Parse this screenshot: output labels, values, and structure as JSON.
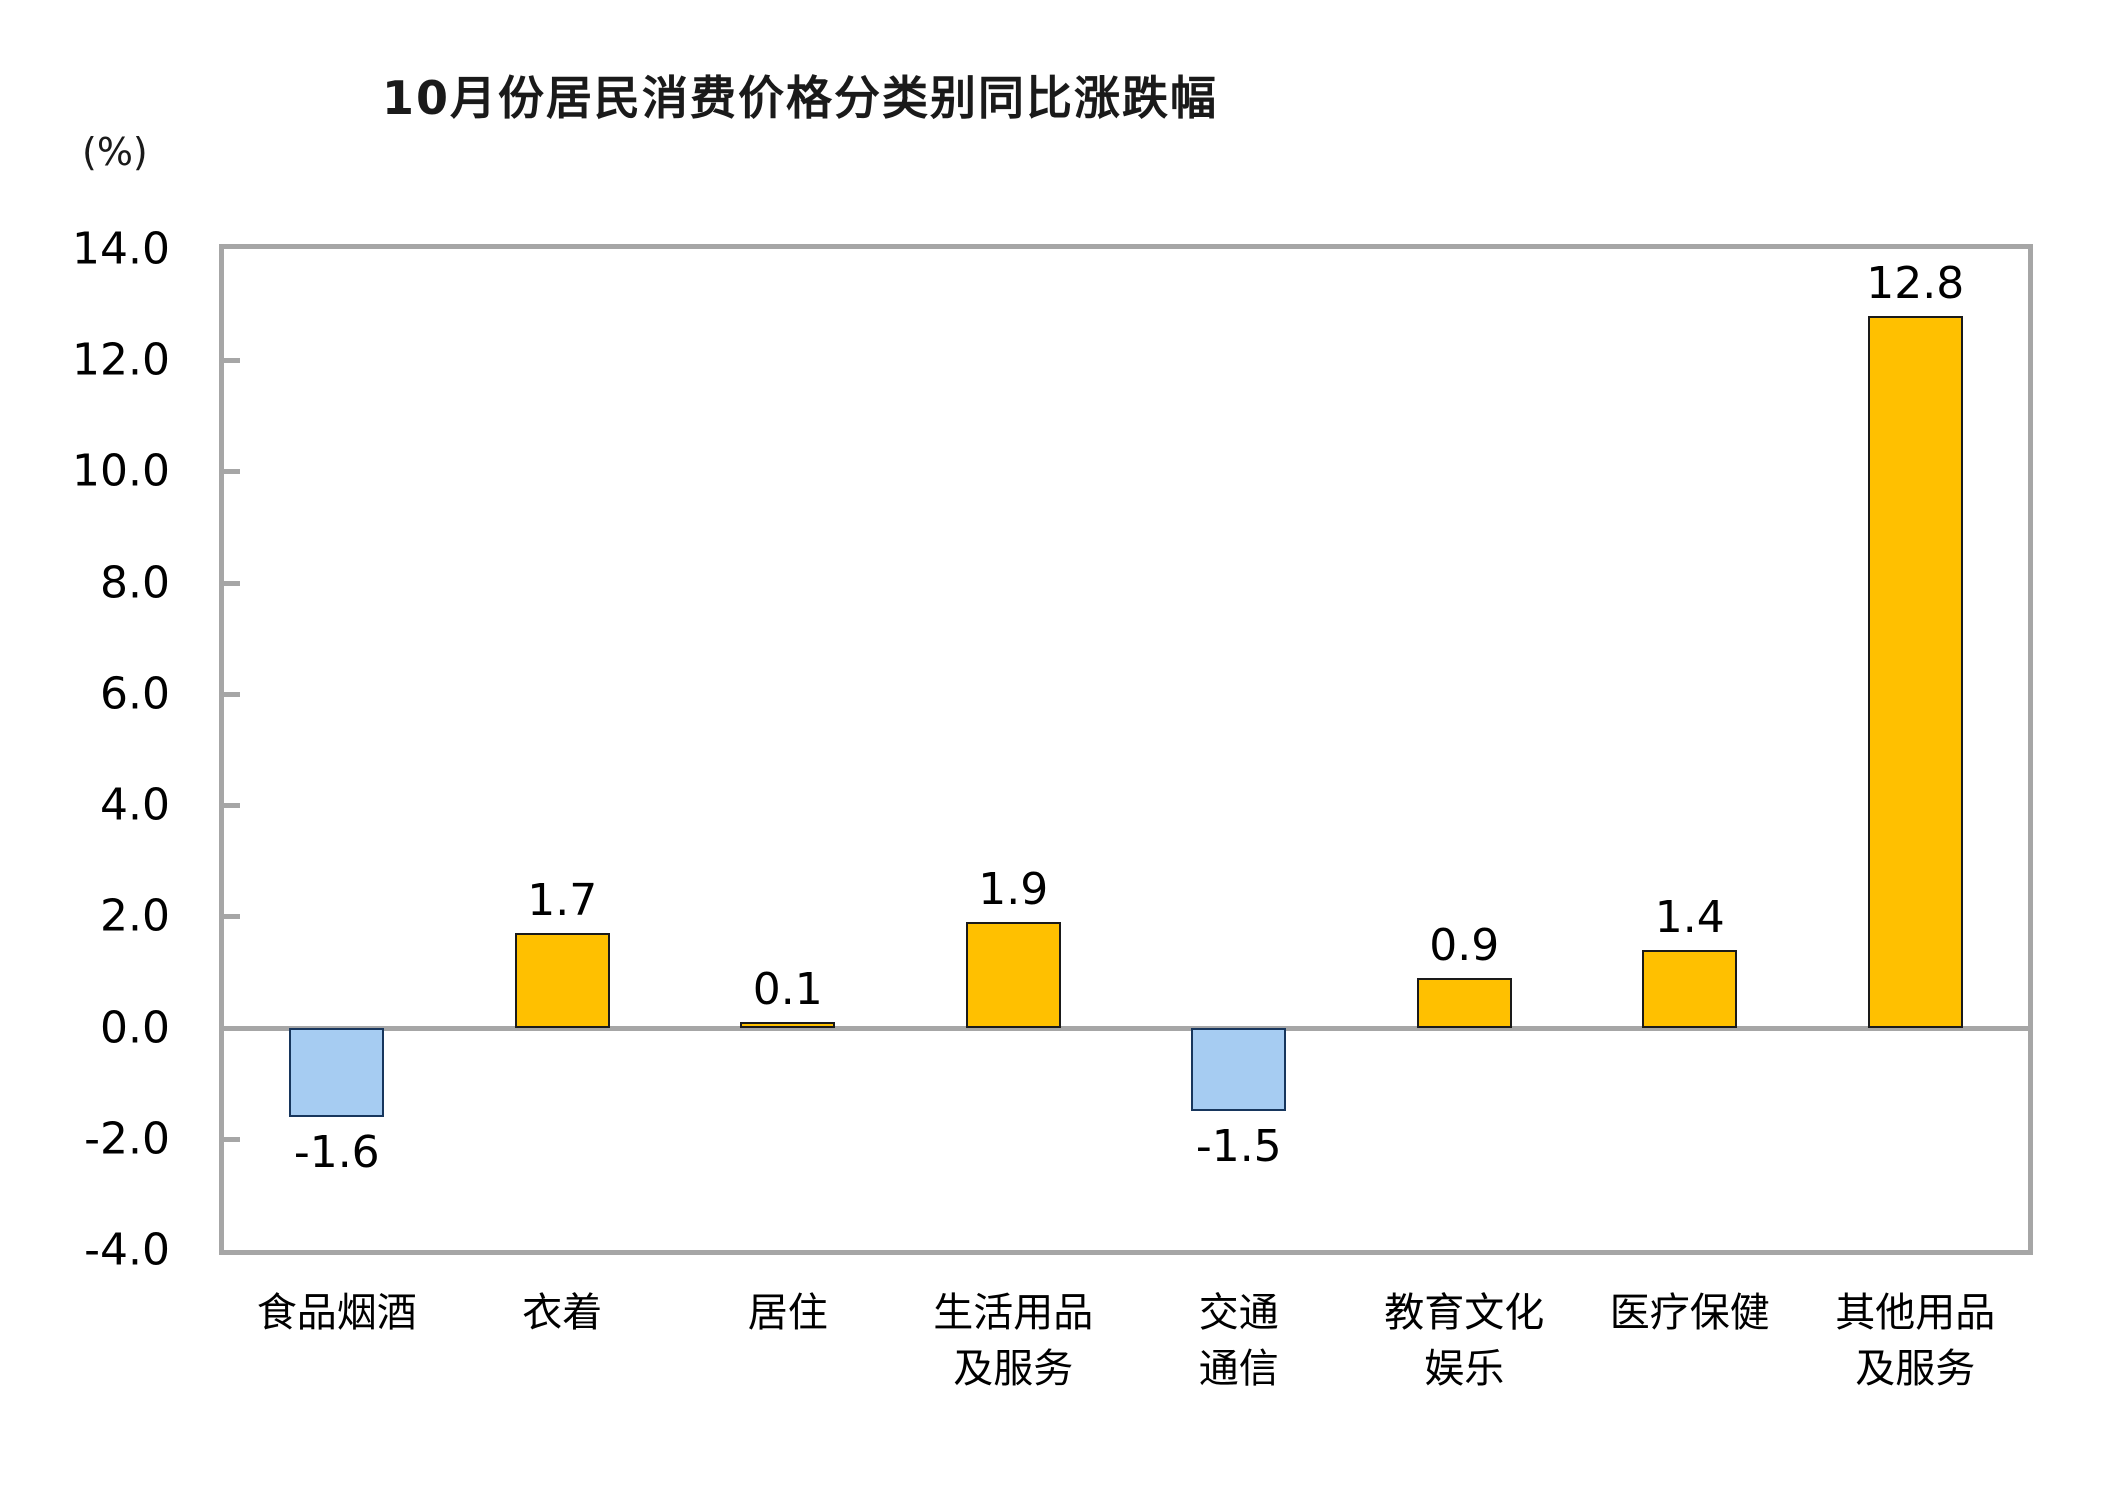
{
  "chart_data": {
    "type": "bar",
    "title": "10月份居民消费价格分类别同比涨跌幅",
    "unit_label": "(%)",
    "categories": [
      "食品烟酒",
      "衣着",
      "居住",
      "生活用品\n及服务",
      "交通\n通信",
      "教育文化\n娱乐",
      "医疗保健",
      "其他用品\n及服务"
    ],
    "values": [
      -1.6,
      1.7,
      0.1,
      1.9,
      -1.5,
      0.9,
      1.4,
      12.8
    ],
    "value_labels": [
      "-1.6",
      "1.7",
      "0.1",
      "1.9",
      "-1.5",
      "0.9",
      "1.4",
      "12.8"
    ],
    "ylabel": "",
    "xlabel": "",
    "ylim": [
      -4.0,
      14.0
    ],
    "ytick_step": 2.0,
    "ytick_labels": [
      "14.0",
      "12.0",
      "10.0",
      "8.0",
      "6.0",
      "4.0",
      "2.0",
      "0.0",
      "-2.0",
      "-4.0"
    ],
    "grid": "off",
    "legend": "none",
    "colors": {
      "positive_fill": "#FFC000",
      "positive_border": "#1a1a1a",
      "negative_fill": "#A6CCF2",
      "negative_border": "#17365D",
      "axis": "#A6A6A6",
      "text": "#000000",
      "background": "#FFFFFF"
    }
  }
}
